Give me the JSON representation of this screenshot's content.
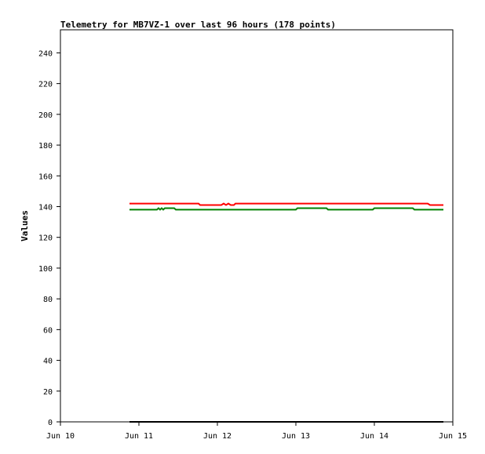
{
  "chart_data": {
    "type": "line",
    "title": "Telemetry for MB7VZ-1 over last 96 hours (178 points)",
    "xlabel": "",
    "ylabel": "Values",
    "x_tick_labels": [
      "Jun 10",
      "Jun 11",
      "Jun 12",
      "Jun 13",
      "Jun 14",
      "Jun 15"
    ],
    "x_ticks": [
      0,
      1,
      2,
      3,
      4,
      5
    ],
    "xlim": [
      0,
      5
    ],
    "y_ticks": [
      0,
      20,
      40,
      60,
      80,
      100,
      120,
      140,
      160,
      180,
      200,
      220,
      240
    ],
    "ylim": [
      0,
      255
    ],
    "grid": false,
    "legend": "none",
    "series": [
      {
        "color": "#ff0000",
        "points": [
          [
            0.88,
            142
          ],
          [
            1.76,
            142
          ],
          [
            1.78,
            141
          ],
          [
            2.05,
            141
          ],
          [
            2.08,
            142
          ],
          [
            2.11,
            141
          ],
          [
            2.14,
            142
          ],
          [
            2.17,
            141
          ],
          [
            2.21,
            141
          ],
          [
            2.23,
            142
          ],
          [
            4.68,
            142
          ],
          [
            4.71,
            141
          ],
          [
            4.88,
            141
          ]
        ]
      },
      {
        "color": "#008000",
        "points": [
          [
            0.88,
            138
          ],
          [
            1.23,
            138
          ],
          [
            1.25,
            139
          ],
          [
            1.27,
            138
          ],
          [
            1.29,
            139
          ],
          [
            1.31,
            138
          ],
          [
            1.33,
            139
          ],
          [
            1.45,
            139
          ],
          [
            1.47,
            138
          ],
          [
            3.0,
            138
          ],
          [
            3.02,
            139
          ],
          [
            3.39,
            139
          ],
          [
            3.41,
            138
          ],
          [
            3.98,
            138
          ],
          [
            4.0,
            139
          ],
          [
            4.49,
            139
          ],
          [
            4.51,
            138
          ],
          [
            4.88,
            138
          ]
        ]
      },
      {
        "color": "#000000",
        "points": [
          [
            0.88,
            0
          ],
          [
            4.88,
            0
          ]
        ]
      }
    ]
  }
}
